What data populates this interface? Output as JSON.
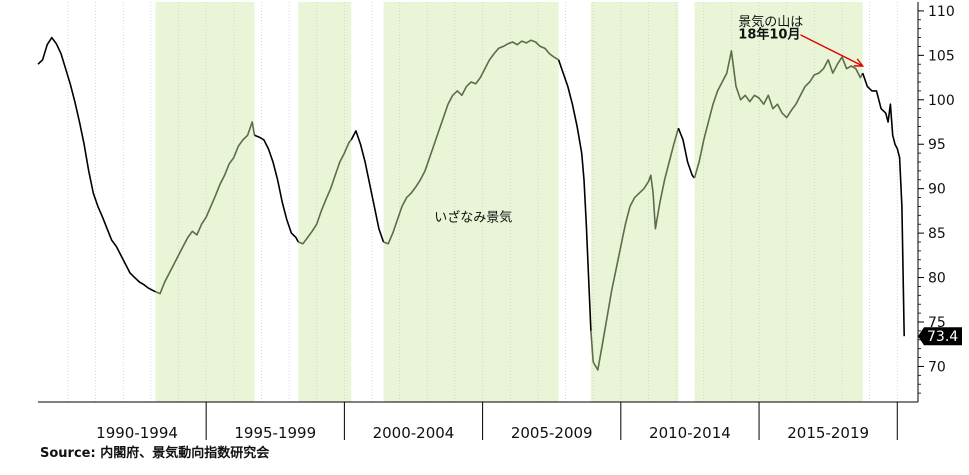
{
  "chart_data": {
    "type": "line",
    "title": "",
    "xlabel": "",
    "ylabel": "",
    "ylim": [
      66,
      111
    ],
    "yticks": [
      70,
      75,
      80,
      85,
      90,
      95,
      100,
      105,
      110
    ],
    "y_axis_side": "right",
    "period_labels": [
      "1990-1994",
      "1995-1999",
      "2000-2004",
      "2005-2009",
      "2010-2014",
      "2015-2019"
    ],
    "grid": "vertical-year-lines",
    "last_value_label": "73.4",
    "colors": {
      "line_black": "#000000",
      "line_green": "#5a6e4a",
      "shading": "#e9f5d6",
      "arrow": "#e00000",
      "badge": "#000000"
    },
    "recession_shading": [
      [
        "1993-03",
        "1996-10"
      ],
      [
        "1998-05",
        "2000-04"
      ],
      [
        "2001-06",
        "2007-10"
      ],
      [
        "2008-12",
        "2012-02"
      ],
      [
        "2012-09",
        "2018-10"
      ]
    ],
    "series": [
      {
        "color": "#000000",
        "points": [
          [
            "1988-12",
            104.0
          ],
          [
            "1989-02",
            104.5
          ],
          [
            "1989-04",
            106.2
          ],
          [
            "1989-06",
            107.0
          ],
          [
            "1989-08",
            106.3
          ],
          [
            "1989-10",
            105.2
          ],
          [
            "1989-12",
            103.5
          ],
          [
            "1990-02",
            101.8
          ],
          [
            "1990-04",
            99.8
          ],
          [
            "1990-06",
            97.5
          ],
          [
            "1990-08",
            95.0
          ],
          [
            "1990-10",
            92.0
          ],
          [
            "1990-12",
            89.5
          ],
          [
            "1991-02",
            88.0
          ],
          [
            "1991-04",
            86.8
          ],
          [
            "1991-06",
            85.5
          ],
          [
            "1991-08",
            84.2
          ],
          [
            "1991-10",
            83.5
          ],
          [
            "1991-12",
            82.5
          ],
          [
            "1992-02",
            81.5
          ],
          [
            "1992-04",
            80.5
          ],
          [
            "1992-06",
            80.0
          ],
          [
            "1992-08",
            79.5
          ],
          [
            "1992-10",
            79.2
          ],
          [
            "1992-12",
            78.8
          ],
          [
            "1993-03",
            78.4
          ]
        ]
      },
      {
        "color": "#5a6e4a",
        "points": [
          [
            "1993-03",
            78.4
          ],
          [
            "1993-05",
            78.2
          ],
          [
            "1993-07",
            79.5
          ],
          [
            "1993-09",
            80.5
          ],
          [
            "1993-11",
            81.5
          ],
          [
            "1994-01",
            82.5
          ],
          [
            "1994-03",
            83.5
          ],
          [
            "1994-05",
            84.5
          ],
          [
            "1994-07",
            85.2
          ],
          [
            "1994-09",
            84.8
          ],
          [
            "1994-11",
            86.0
          ],
          [
            "1995-01",
            86.8
          ],
          [
            "1995-03",
            88.0
          ],
          [
            "1995-05",
            89.2
          ],
          [
            "1995-07",
            90.5
          ],
          [
            "1995-09",
            91.5
          ],
          [
            "1995-11",
            92.8
          ],
          [
            "1996-01",
            93.5
          ],
          [
            "1996-03",
            94.8
          ],
          [
            "1996-05",
            95.5
          ],
          [
            "1996-07",
            96.0
          ],
          [
            "1996-09",
            97.5
          ],
          [
            "1996-10",
            96.0
          ]
        ]
      },
      {
        "color": "#000000",
        "points": [
          [
            "1996-10",
            96.0
          ],
          [
            "1996-12",
            95.8
          ],
          [
            "1997-02",
            95.5
          ],
          [
            "1997-04",
            94.5
          ],
          [
            "1997-06",
            93.0
          ],
          [
            "1997-08",
            91.0
          ],
          [
            "1997-10",
            88.5
          ],
          [
            "1997-12",
            86.5
          ],
          [
            "1998-02",
            85.0
          ],
          [
            "1998-04",
            84.5
          ],
          [
            "1998-05",
            84.0
          ]
        ]
      },
      {
        "color": "#5a6e4a",
        "points": [
          [
            "1998-05",
            84.0
          ],
          [
            "1998-07",
            83.8
          ],
          [
            "1998-09",
            84.5
          ],
          [
            "1998-11",
            85.2
          ],
          [
            "1999-01",
            86.0
          ],
          [
            "1999-03",
            87.5
          ],
          [
            "1999-05",
            88.8
          ],
          [
            "1999-07",
            90.0
          ],
          [
            "1999-09",
            91.5
          ],
          [
            "1999-11",
            93.0
          ],
          [
            "2000-01",
            94.0
          ],
          [
            "2000-03",
            95.2
          ],
          [
            "2000-04",
            95.5
          ]
        ]
      },
      {
        "color": "#000000",
        "points": [
          [
            "2000-04",
            95.5
          ],
          [
            "2000-06",
            96.5
          ],
          [
            "2000-08",
            95.0
          ],
          [
            "2000-10",
            93.0
          ],
          [
            "2000-12",
            90.5
          ],
          [
            "2001-02",
            88.0
          ],
          [
            "2001-04",
            85.5
          ],
          [
            "2001-06",
            84.0
          ]
        ]
      },
      {
        "color": "#5a6e4a",
        "points": [
          [
            "2001-06",
            84.0
          ],
          [
            "2001-08",
            83.8
          ],
          [
            "2001-10",
            85.0
          ],
          [
            "2001-12",
            86.5
          ],
          [
            "2002-02",
            88.0
          ],
          [
            "2002-04",
            89.0
          ],
          [
            "2002-06",
            89.5
          ],
          [
            "2002-08",
            90.2
          ],
          [
            "2002-10",
            91.0
          ],
          [
            "2002-12",
            92.0
          ],
          [
            "2003-02",
            93.5
          ],
          [
            "2003-04",
            95.0
          ],
          [
            "2003-06",
            96.5
          ],
          [
            "2003-08",
            98.0
          ],
          [
            "2003-10",
            99.5
          ],
          [
            "2003-12",
            100.5
          ],
          [
            "2004-02",
            101.0
          ],
          [
            "2004-04",
            100.5
          ],
          [
            "2004-06",
            101.5
          ],
          [
            "2004-08",
            102.0
          ],
          [
            "2004-10",
            101.8
          ],
          [
            "2004-12",
            102.5
          ],
          [
            "2005-02",
            103.5
          ],
          [
            "2005-04",
            104.5
          ],
          [
            "2005-06",
            105.2
          ],
          [
            "2005-08",
            105.8
          ],
          [
            "2005-10",
            106.0
          ],
          [
            "2005-12",
            106.3
          ],
          [
            "2006-02",
            106.5
          ],
          [
            "2006-04",
            106.2
          ],
          [
            "2006-06",
            106.6
          ],
          [
            "2006-08",
            106.4
          ],
          [
            "2006-10",
            106.7
          ],
          [
            "2006-12",
            106.5
          ],
          [
            "2007-02",
            106.0
          ],
          [
            "2007-04",
            105.8
          ],
          [
            "2007-06",
            105.2
          ],
          [
            "2007-08",
            104.8
          ],
          [
            "2007-10",
            104.5
          ]
        ]
      },
      {
        "color": "#000000",
        "points": [
          [
            "2007-10",
            104.5
          ],
          [
            "2007-12",
            103.0
          ],
          [
            "2008-02",
            101.5
          ],
          [
            "2008-04",
            99.5
          ],
          [
            "2008-06",
            97.0
          ],
          [
            "2008-08",
            94.0
          ],
          [
            "2008-09",
            91.0
          ],
          [
            "2008-10",
            86.0
          ],
          [
            "2008-11",
            80.0
          ],
          [
            "2008-12",
            74.0
          ]
        ]
      },
      {
        "color": "#5a6e4a",
        "points": [
          [
            "2008-12",
            74.0
          ],
          [
            "2009-01",
            70.5
          ],
          [
            "2009-03",
            69.6
          ],
          [
            "2009-05",
            72.5
          ],
          [
            "2009-07",
            75.5
          ],
          [
            "2009-09",
            78.5
          ],
          [
            "2009-11",
            81.0
          ],
          [
            "2010-01",
            83.5
          ],
          [
            "2010-03",
            86.0
          ],
          [
            "2010-05",
            88.0
          ],
          [
            "2010-07",
            89.0
          ],
          [
            "2010-09",
            89.5
          ],
          [
            "2010-11",
            90.0
          ],
          [
            "2011-01",
            90.8
          ],
          [
            "2011-02",
            91.5
          ],
          [
            "2011-03",
            89.5
          ],
          [
            "2011-04",
            85.5
          ],
          [
            "2011-06",
            88.5
          ],
          [
            "2011-08",
            91.0
          ],
          [
            "2011-10",
            93.0
          ],
          [
            "2011-12",
            95.0
          ],
          [
            "2012-02",
            96.8
          ]
        ]
      },
      {
        "color": "#000000",
        "points": [
          [
            "2012-02",
            96.8
          ],
          [
            "2012-04",
            95.5
          ],
          [
            "2012-06",
            93.0
          ],
          [
            "2012-08",
            91.5
          ],
          [
            "2012-09",
            91.2
          ]
        ]
      },
      {
        "color": "#5a6e4a",
        "points": [
          [
            "2012-09",
            91.2
          ],
          [
            "2012-11",
            93.0
          ],
          [
            "2013-01",
            95.5
          ],
          [
            "2013-03",
            97.5
          ],
          [
            "2013-05",
            99.5
          ],
          [
            "2013-07",
            101.0
          ],
          [
            "2013-09",
            102.0
          ],
          [
            "2013-11",
            103.0
          ],
          [
            "2014-01",
            105.5
          ],
          [
            "2014-03",
            101.5
          ],
          [
            "2014-05",
            100.0
          ],
          [
            "2014-07",
            100.5
          ],
          [
            "2014-09",
            99.8
          ],
          [
            "2014-11",
            100.5
          ],
          [
            "2015-01",
            100.2
          ],
          [
            "2015-03",
            99.5
          ],
          [
            "2015-05",
            100.5
          ],
          [
            "2015-07",
            99.0
          ],
          [
            "2015-09",
            99.5
          ],
          [
            "2015-11",
            98.5
          ],
          [
            "2016-01",
            98.0
          ],
          [
            "2016-03",
            98.8
          ],
          [
            "2016-05",
            99.5
          ],
          [
            "2016-07",
            100.5
          ],
          [
            "2016-09",
            101.5
          ],
          [
            "2016-11",
            102.0
          ],
          [
            "2017-01",
            102.8
          ],
          [
            "2017-03",
            103.0
          ],
          [
            "2017-05",
            103.5
          ],
          [
            "2017-07",
            104.5
          ],
          [
            "2017-09",
            103.0
          ],
          [
            "2017-11",
            104.0
          ],
          [
            "2018-01",
            104.8
          ],
          [
            "2018-03",
            103.5
          ],
          [
            "2018-05",
            103.8
          ],
          [
            "2018-07",
            103.5
          ],
          [
            "2018-09",
            102.5
          ],
          [
            "2018-10",
            103.0
          ]
        ]
      },
      {
        "color": "#000000",
        "points": [
          [
            "2018-10",
            103.0
          ],
          [
            "2018-12",
            101.5
          ],
          [
            "2019-02",
            101.0
          ],
          [
            "2019-04",
            101.0
          ],
          [
            "2019-06",
            99.0
          ],
          [
            "2019-08",
            98.5
          ],
          [
            "2019-09",
            97.5
          ],
          [
            "2019-10",
            99.5
          ],
          [
            "2019-11",
            96.0
          ],
          [
            "2019-12",
            95.0
          ],
          [
            "2020-01",
            94.5
          ],
          [
            "2020-02",
            93.5
          ],
          [
            "2020-03",
            88.0
          ],
          [
            "2020-04",
            73.4
          ]
        ]
      }
    ],
    "annotations": [
      {
        "text": "いざなみ景気",
        "at": [
          "2003-04",
          86.3
        ]
      },
      {
        "text": "景気の山は",
        "at": [
          "2014-04",
          108.3
        ]
      },
      {
        "text": "18年10月",
        "at": [
          "2014-04",
          106.9
        ]
      }
    ],
    "arrow": {
      "from": [
        "2016-07",
        107.3
      ],
      "to": [
        "2018-10",
        103.8
      ]
    }
  },
  "footer": {
    "source": "Source: 内閣府、景気動向指数研究会"
  }
}
